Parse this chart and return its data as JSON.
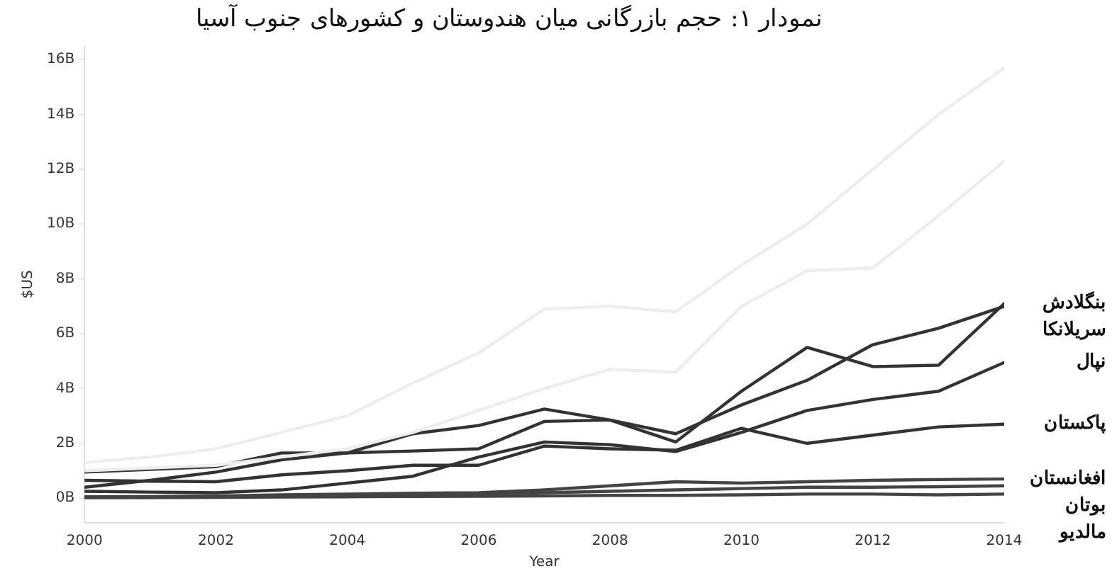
{
  "chart_data": {
    "type": "line",
    "title": "نمودار ۱: حجم بازرگانی میان هندوستان و کشورهای جنوب آسیا",
    "xlabel": "Year",
    "ylabel": "$US",
    "x": [
      2000,
      2001,
      2002,
      2003,
      2004,
      2005,
      2006,
      2007,
      2008,
      2009,
      2010,
      2011,
      2012,
      2013,
      2014
    ],
    "xlim": [
      2000,
      2014
    ],
    "xticks": [
      2000,
      2002,
      2004,
      2006,
      2008,
      2010,
      2012,
      2014
    ],
    "ylim": [
      -0.9,
      16.5
    ],
    "yticks": [
      {
        "value": 0,
        "label": "0B"
      },
      {
        "value": 2,
        "label": "2B"
      },
      {
        "value": 4,
        "label": "4B"
      },
      {
        "value": 6,
        "label": "6B"
      },
      {
        "value": 8,
        "label": "8B"
      },
      {
        "value": 10,
        "label": "10B"
      },
      {
        "value": 12,
        "label": "12B"
      },
      {
        "value": 14,
        "label": "14B"
      },
      {
        "value": 16,
        "label": "16B"
      }
    ],
    "series": [
      {
        "color": "#eeeeee",
        "values": [
          1.3,
          1.5,
          1.8,
          2.4,
          3.0,
          4.2,
          5.3,
          6.9,
          7.0,
          6.8,
          8.5,
          10,
          12,
          14,
          15.7
        ]
      },
      {
        "color": "#eeeeee",
        "values": [
          1.0,
          1.1,
          1.2,
          1.5,
          1.8,
          2.4,
          3.2,
          4.0,
          4.7,
          4.6,
          7.0,
          8.3,
          8.4,
          10.3,
          12.3
        ]
      },
      {
        "name": "بنگلادش",
        "color": "#333333",
        "values": [
          0.95,
          1.05,
          1.15,
          1.65,
          1.65,
          1.72,
          1.8,
          2.8,
          2.85,
          2.05,
          3.9,
          5.5,
          4.8,
          4.85,
          7.1
        ]
      },
      {
        "name": "سریلانکا",
        "color": "#333333",
        "values": [
          0.4,
          0.65,
          0.95,
          1.4,
          1.65,
          2.35,
          2.65,
          3.25,
          2.85,
          2.35,
          3.4,
          4.3,
          5.6,
          6.2,
          7.0
        ]
      },
      {
        "name": "نپال",
        "color": "#333333",
        "values": [
          0.25,
          0.22,
          0.2,
          0.3,
          0.55,
          0.8,
          1.5,
          2.05,
          1.95,
          1.7,
          2.4,
          3.2,
          3.6,
          3.9,
          4.95
        ]
      },
      {
        "name": "پاکستان",
        "color": "#333333",
        "values": [
          0.65,
          0.62,
          0.6,
          0.85,
          1.0,
          1.2,
          1.2,
          1.9,
          1.8,
          1.75,
          2.55,
          2.0,
          2.3,
          2.6,
          2.7
        ]
      },
      {
        "name": "افغانستان",
        "color": "#444444",
        "values": [
          0.05,
          0.06,
          0.08,
          0.12,
          0.15,
          0.18,
          0.2,
          0.3,
          0.45,
          0.6,
          0.55,
          0.6,
          0.65,
          0.68,
          0.7
        ]
      },
      {
        "name": "بوتان",
        "color": "#444444",
        "values": [
          0.02,
          0.03,
          0.05,
          0.08,
          0.1,
          0.12,
          0.15,
          0.2,
          0.25,
          0.3,
          0.35,
          0.4,
          0.4,
          0.42,
          0.45
        ]
      },
      {
        "name": "مالدیو",
        "color": "#444444",
        "values": [
          0.02,
          0.02,
          0.03,
          0.04,
          0.05,
          0.06,
          0.07,
          0.08,
          0.1,
          0.1,
          0.12,
          0.15,
          0.15,
          0.12,
          0.15
        ]
      }
    ]
  }
}
